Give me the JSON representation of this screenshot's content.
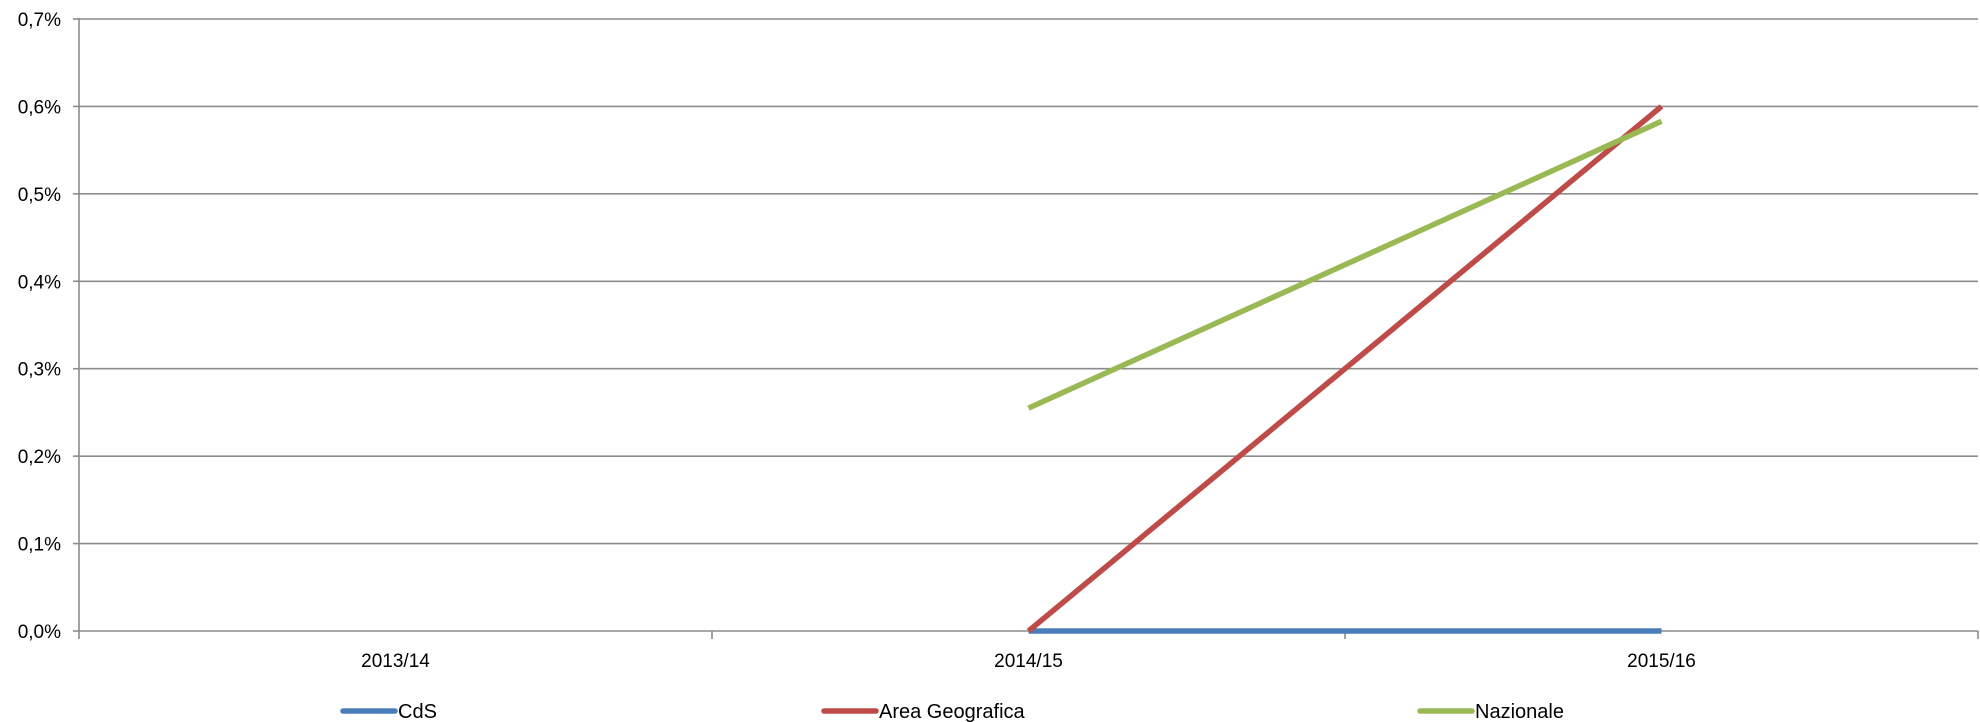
{
  "chart_data": {
    "type": "line",
    "title": "",
    "xlabel": "",
    "ylabel": "",
    "categories": [
      "2013/14",
      "2014/15",
      "2015/16"
    ],
    "ylim": [
      0,
      0.7
    ],
    "yticks": [
      0.0,
      0.1,
      0.2,
      0.3,
      0.4,
      0.5,
      0.6,
      0.7
    ],
    "ytick_labels": [
      "0,0%",
      "0,1%",
      "0,2%",
      "0,3%",
      "0,4%",
      "0,5%",
      "0,6%",
      "0,7%"
    ],
    "grid": true,
    "legend_position": "bottom",
    "series": [
      {
        "name": "CdS",
        "color": "#4a7ebb",
        "values": [
          null,
          0.0,
          0.0
        ]
      },
      {
        "name": "Area Geografica",
        "color": "#be4b48",
        "values": [
          null,
          0.0,
          0.6
        ]
      },
      {
        "name": "Nazionale",
        "color": "#98b954",
        "values": [
          null,
          0.255,
          0.583
        ]
      }
    ]
  }
}
